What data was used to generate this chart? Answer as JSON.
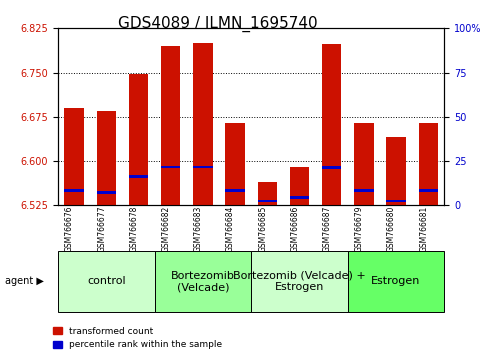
{
  "title": "GDS4089 / ILMN_1695740",
  "samples": [
    "GSM766676",
    "GSM766677",
    "GSM766678",
    "GSM766682",
    "GSM766683",
    "GSM766684",
    "GSM766685",
    "GSM766686",
    "GSM766687",
    "GSM766679",
    "GSM766680",
    "GSM766681"
  ],
  "red_values": [
    6.69,
    6.685,
    6.748,
    6.795,
    6.8,
    6.665,
    6.565,
    6.59,
    6.798,
    6.665,
    6.64,
    6.665
  ],
  "blue_values": [
    6.548,
    6.545,
    6.572,
    6.588,
    6.588,
    6.548,
    6.53,
    6.536,
    6.587,
    6.548,
    6.53,
    6.548
  ],
  "ymin": 6.525,
  "ymax": 6.825,
  "yticks_left": [
    6.525,
    6.6,
    6.675,
    6.75,
    6.825
  ],
  "yticks_right_vals": [
    0,
    25,
    50,
    75,
    100
  ],
  "yticks_right_labels": [
    "0",
    "25",
    "50",
    "75",
    "100%"
  ],
  "groups": [
    {
      "label": "control",
      "start": 0,
      "end": 3,
      "color": "#ccffcc"
    },
    {
      "label": "Bortezomib\n(Velcade)",
      "start": 3,
      "end": 6,
      "color": "#99ff99"
    },
    {
      "label": "Bortezomib (Velcade) +\nEstrogen",
      "start": 6,
      "end": 9,
      "color": "#ccffcc"
    },
    {
      "label": "Estrogen",
      "start": 9,
      "end": 12,
      "color": "#66ff66"
    }
  ],
  "legend_red_label": "transformed count",
  "legend_blue_label": "percentile rank within the sample",
  "bar_color": "#cc1100",
  "blue_color": "#0000cc",
  "bar_width": 0.6,
  "xlabel_color": "#cc1100",
  "right_axis_color": "#0000cc",
  "title_fontsize": 11,
  "tick_fontsize": 7,
  "label_fontsize": 8,
  "group_label_fontsize": 8
}
